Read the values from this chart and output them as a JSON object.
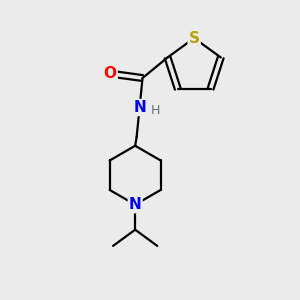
{
  "background_color": "#ebebeb",
  "atom_colors": {
    "S": "#b8a000",
    "O": "#ff0000",
    "N_amide": "#0000ee",
    "N_pip": "#0000ee",
    "H": "#607080",
    "C": "#000000"
  },
  "figsize": [
    3.0,
    3.0
  ],
  "dpi": 100,
  "bond_lw": 1.6,
  "font_size_atom": 11,
  "font_size_H": 9
}
